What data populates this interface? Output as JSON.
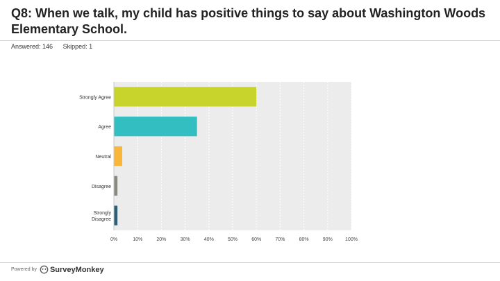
{
  "header": {
    "title": "Q8: When we talk, my child has positive things to say about Washington Woods Elementary School.",
    "answered": "Answered: 146",
    "skipped": "Skipped: 1"
  },
  "footer": {
    "powered_by": "Powered by",
    "brand": "SurveyMonkey",
    "logo_icon": "surveymonkey-logo-icon"
  },
  "chart_data": {
    "type": "bar",
    "orientation": "horizontal",
    "categories": [
      "Strongly Agree",
      "Agree",
      "Neutral",
      "Disagree",
      "Strongly Disagree"
    ],
    "values": [
      60,
      35,
      3.5,
      1.5,
      1.5
    ],
    "colors": [
      "#c8d42b",
      "#33bec1",
      "#f8b63a",
      "#8a8a80",
      "#2f5f74"
    ],
    "xlim": [
      0,
      100
    ],
    "xticks": [
      "0%",
      "10%",
      "20%",
      "30%",
      "40%",
      "50%",
      "60%",
      "70%",
      "80%",
      "90%",
      "100%"
    ],
    "grid": true,
    "plot_background": "#ececec"
  }
}
